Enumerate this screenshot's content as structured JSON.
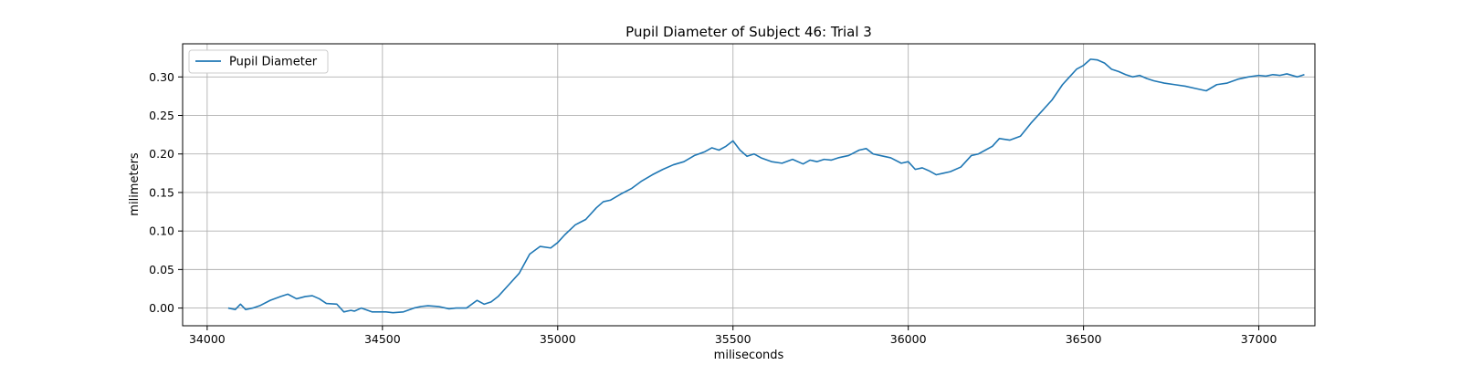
{
  "chart_data": {
    "type": "line",
    "title": "Pupil Diameter of Subject 46: Trial 3",
    "xlabel": "miliseconds",
    "ylabel": "milimeters",
    "xlim": [
      33930,
      37160
    ],
    "ylim": [
      -0.023,
      0.343
    ],
    "xticks": [
      34000,
      34500,
      35000,
      35500,
      36000,
      36500,
      37000
    ],
    "yticks": [
      0.0,
      0.05,
      0.1,
      0.15,
      0.2,
      0.25,
      0.3
    ],
    "xtick_labels": [
      "34000",
      "34500",
      "35000",
      "35500",
      "36000",
      "36500",
      "37000"
    ],
    "ytick_labels": [
      "0.00",
      "0.05",
      "0.10",
      "0.15",
      "0.20",
      "0.25",
      "0.30"
    ],
    "grid": true,
    "legend_position": "top-left",
    "colors": {
      "series": "#1f77b4",
      "grid": "#b0b0b0",
      "axes": "#000000"
    },
    "series": [
      {
        "name": "Pupil Diameter",
        "x": [
          34060,
          34080,
          34095,
          34110,
          34130,
          34150,
          34180,
          34210,
          34230,
          34255,
          34280,
          34300,
          34320,
          34340,
          34370,
          34390,
          34410,
          34420,
          34440,
          34470,
          34490,
          34510,
          34530,
          34560,
          34590,
          34610,
          34630,
          34660,
          34690,
          34710,
          34740,
          34770,
          34790,
          34810,
          34830,
          34860,
          34890,
          34920,
          34950,
          34980,
          35000,
          35020,
          35050,
          35080,
          35110,
          35130,
          35150,
          35180,
          35210,
          35240,
          35270,
          35300,
          35330,
          35360,
          35390,
          35420,
          35440,
          35460,
          35480,
          35500,
          35520,
          35540,
          35560,
          35580,
          35610,
          35640,
          35670,
          35700,
          35720,
          35740,
          35760,
          35780,
          35800,
          35830,
          35860,
          35880,
          35900,
          35920,
          35950,
          35980,
          36000,
          36020,
          36040,
          36060,
          36080,
          36100,
          36120,
          36150,
          36180,
          36200,
          36220,
          36240,
          36260,
          36290,
          36320,
          36350,
          36380,
          36410,
          36440,
          36460,
          36480,
          36500,
          36520,
          36540,
          36560,
          36580,
          36600,
          36620,
          36640,
          36660,
          36680,
          36700,
          36730,
          36760,
          36790,
          36820,
          36850,
          36880,
          36910,
          36940,
          36970,
          37000,
          37020,
          37040,
          37060,
          37080,
          37110,
          37130
        ],
        "y": [
          0.0,
          -0.002,
          0.005,
          -0.002,
          0.0,
          0.003,
          0.01,
          0.015,
          0.018,
          0.012,
          0.015,
          0.016,
          0.012,
          0.006,
          0.005,
          -0.005,
          -0.003,
          -0.004,
          0.0,
          -0.005,
          -0.005,
          -0.005,
          -0.006,
          -0.005,
          0.0,
          0.002,
          0.003,
          0.002,
          -0.001,
          0.0,
          0.0,
          0.01,
          0.005,
          0.008,
          0.015,
          0.03,
          0.045,
          0.07,
          0.08,
          0.078,
          0.085,
          0.095,
          0.108,
          0.115,
          0.13,
          0.138,
          0.14,
          0.148,
          0.155,
          0.165,
          0.173,
          0.18,
          0.186,
          0.19,
          0.198,
          0.203,
          0.208,
          0.205,
          0.21,
          0.217,
          0.205,
          0.197,
          0.2,
          0.195,
          0.19,
          0.188,
          0.193,
          0.187,
          0.192,
          0.19,
          0.193,
          0.192,
          0.195,
          0.198,
          0.205,
          0.207,
          0.2,
          0.198,
          0.195,
          0.188,
          0.19,
          0.18,
          0.182,
          0.178,
          0.173,
          0.175,
          0.177,
          0.183,
          0.198,
          0.2,
          0.205,
          0.21,
          0.22,
          0.218,
          0.223,
          0.24,
          0.255,
          0.27,
          0.29,
          0.3,
          0.31,
          0.315,
          0.323,
          0.322,
          0.318,
          0.31,
          0.307,
          0.303,
          0.3,
          0.302,
          0.298,
          0.295,
          0.292,
          0.29,
          0.288,
          0.285,
          0.282,
          0.29,
          0.292,
          0.297,
          0.3,
          0.302,
          0.301,
          0.303,
          0.302,
          0.304,
          0.3,
          0.303
        ]
      }
    ]
  }
}
